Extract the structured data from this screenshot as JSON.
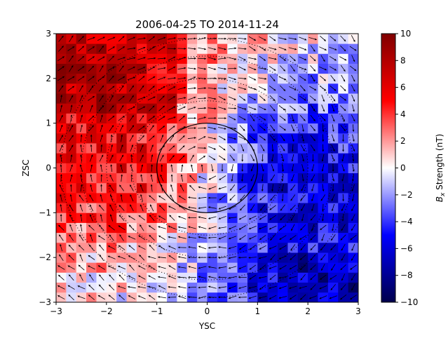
{
  "chart_data": {
    "type": "heatmap",
    "title": "2006-04-25 TO 2014-11-24",
    "xlabel": "YSC",
    "ylabel": "ZSC",
    "xlim": [
      -3,
      3
    ],
    "ylim": [
      -3,
      3
    ],
    "x_ticks": [
      "−3",
      "−2",
      "−1",
      "0",
      "1",
      "2",
      "3"
    ],
    "y_ticks": [
      "−3",
      "−2",
      "−1",
      "0",
      "1",
      "2",
      "3"
    ],
    "grid_bins": [
      30,
      27
    ],
    "colorbar": {
      "label_prefix": "B",
      "label_sub": "x",
      "label_suffix": " Strength (nT)",
      "range": [
        -10,
        10
      ],
      "ticks": [
        "−10",
        "−8",
        "−6",
        "−4",
        "−2",
        "0",
        "2",
        "4",
        "6",
        "8",
        "10"
      ],
      "colormap": "seismic",
      "colors": [
        "#00004c",
        "#0000ff",
        "#ffffff",
        "#ff0000",
        "#800000"
      ]
    },
    "overlays": {
      "solid_circle_radius": 1.0,
      "dotted_circle_radii": [
        1.5,
        2.0,
        2.5,
        2.9
      ],
      "quiver_field": "clockwise swirl around origin"
    }
  }
}
